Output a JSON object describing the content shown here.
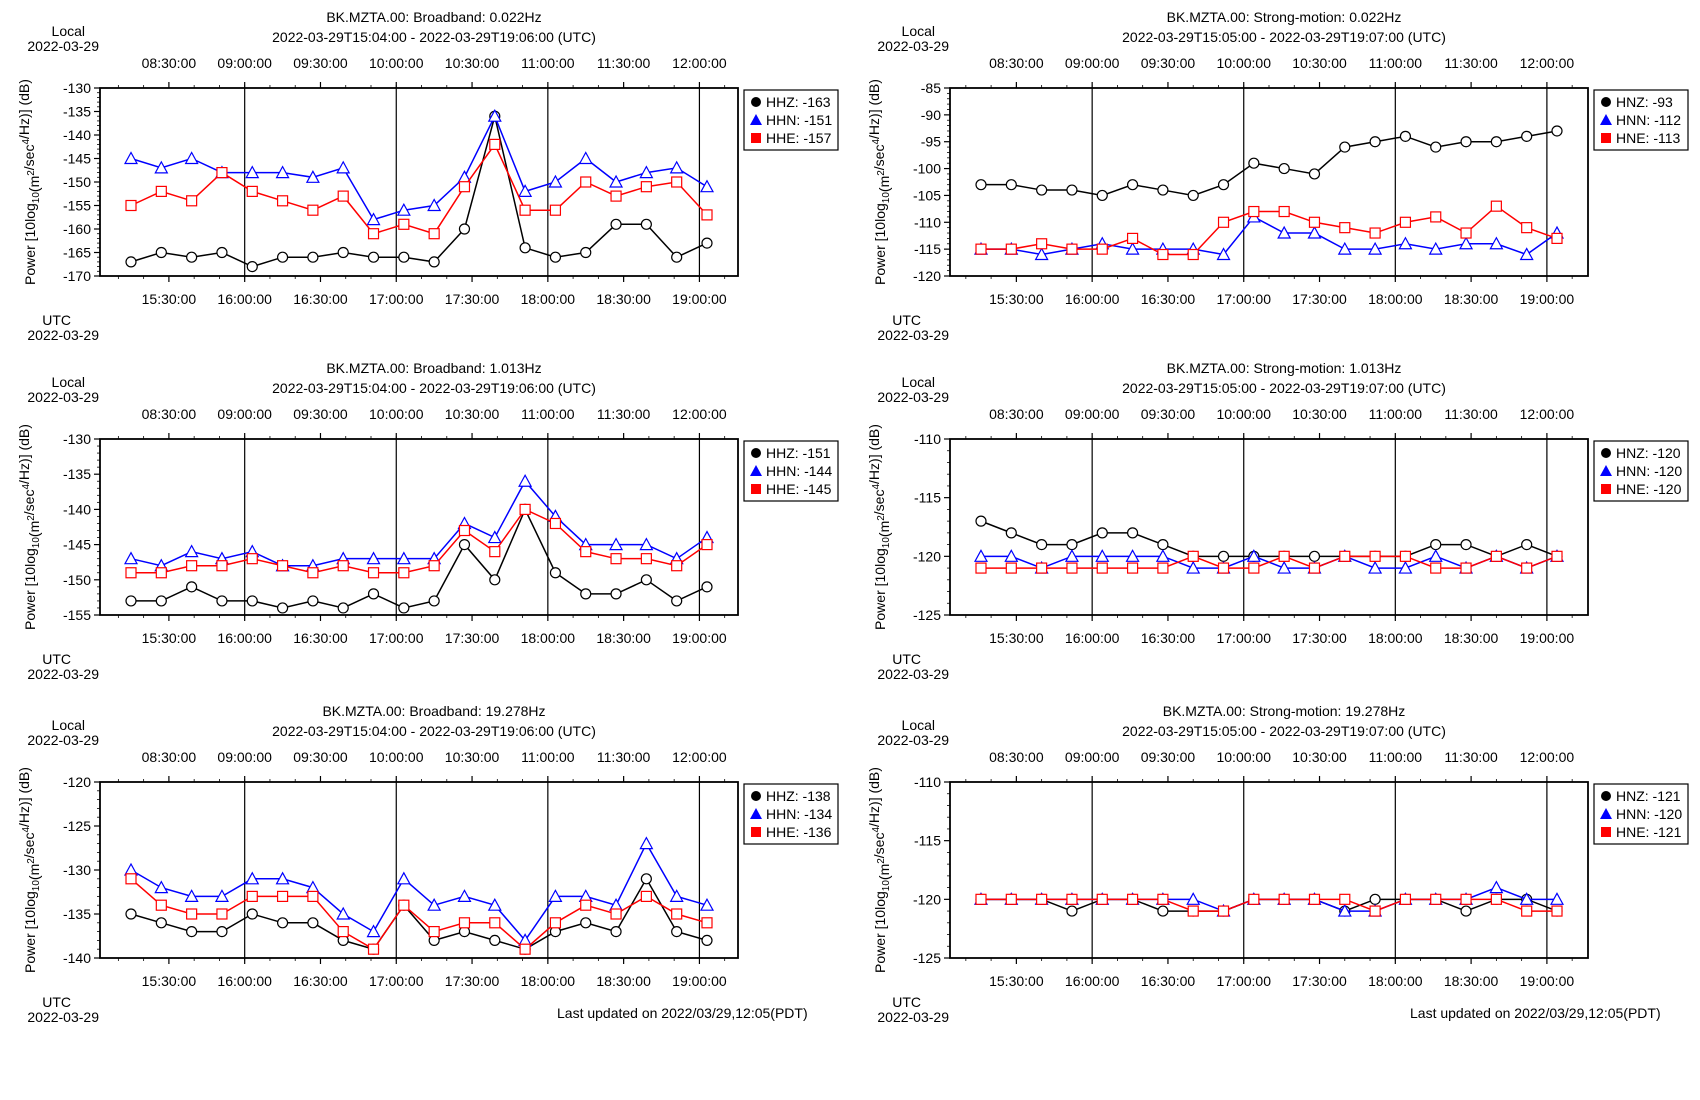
{
  "chart_data": [
    {
      "type": "line",
      "title": "BK.MZTA.00: Broadband: 0.022Hz",
      "subtitle": "2022-03-29T15:04:00 - 2022-03-29T19:06:00 (UTC)",
      "ylabel": "Power [10log10(m2/sec4/Hz)] (dB)",
      "ylim": [
        -170,
        -130
      ],
      "yticks": [
        -130,
        -135,
        -140,
        -145,
        -150,
        -155,
        -160,
        -165,
        -170
      ],
      "local_label": "Local",
      "local_date": "2022-03-29",
      "utc_label": "UTC",
      "utc_date": "2022-03-29",
      "top_ticks": [
        "08:30:00",
        "09:00:00",
        "09:30:00",
        "10:00:00",
        "10:30:00",
        "11:00:00",
        "11:30:00",
        "12:00:00"
      ],
      "bottom_ticks": [
        "15:30:00",
        "16:00:00",
        "16:30:00",
        "17:00:00",
        "17:30:00",
        "18:00:00",
        "18:30:00",
        "19:00:00"
      ],
      "x": [
        "15:15",
        "15:27",
        "15:39",
        "15:51",
        "16:03",
        "16:15",
        "16:27",
        "16:39",
        "16:51",
        "17:03",
        "17:15",
        "17:27",
        "17:39",
        "17:51",
        "18:03",
        "18:15",
        "18:27",
        "18:39",
        "18:51",
        "19:03"
      ],
      "series": [
        {
          "name": "HHZ: -163",
          "color": "#000000",
          "marker": "circle",
          "values": [
            -167,
            -165,
            -166,
            -165,
            -168,
            -166,
            -166,
            -165,
            -166,
            -166,
            -167,
            -160,
            -136,
            -164,
            -166,
            -165,
            -159,
            -159,
            -166,
            -163
          ]
        },
        {
          "name": "HHN: -151",
          "color": "#0000ff",
          "marker": "triangle",
          "values": [
            -145,
            -147,
            -145,
            -148,
            -148,
            -148,
            -149,
            -147,
            -158,
            -156,
            -155,
            -149,
            -136,
            -152,
            -150,
            -145,
            -150,
            -148,
            -147,
            -151
          ]
        },
        {
          "name": "HHE: -157",
          "color": "#ff0000",
          "marker": "square",
          "values": [
            -155,
            -152,
            -154,
            -148,
            -152,
            -154,
            -156,
            -153,
            -161,
            -159,
            -161,
            -151,
            -142,
            -156,
            -156,
            -150,
            -153,
            -151,
            -150,
            -157
          ]
        }
      ],
      "legend": "top-right"
    },
    {
      "type": "line",
      "title": "BK.MZTA.00: Strong-motion: 0.022Hz",
      "subtitle": "2022-03-29T15:05:00 - 2022-03-29T19:07:00 (UTC)",
      "ylabel": "Power [10log10(m2/sec4/Hz)] (dB)",
      "ylim": [
        -120,
        -85
      ],
      "yticks": [
        -85,
        -90,
        -95,
        -100,
        -105,
        -110,
        -115,
        -120
      ],
      "local_label": "Local",
      "local_date": "2022-03-29",
      "utc_label": "UTC",
      "utc_date": "2022-03-29",
      "top_ticks": [
        "08:30:00",
        "09:00:00",
        "09:30:00",
        "10:00:00",
        "10:30:00",
        "11:00:00",
        "11:30:00",
        "12:00:00"
      ],
      "bottom_ticks": [
        "15:30:00",
        "16:00:00",
        "16:30:00",
        "17:00:00",
        "17:30:00",
        "18:00:00",
        "18:30:00",
        "19:00:00"
      ],
      "x": [
        "15:16",
        "15:28",
        "15:40",
        "15:52",
        "16:04",
        "16:16",
        "16:28",
        "16:40",
        "16:52",
        "17:04",
        "17:16",
        "17:28",
        "17:40",
        "17:52",
        "18:04",
        "18:16",
        "18:28",
        "18:40",
        "18:52",
        "19:04"
      ],
      "series": [
        {
          "name": "HNZ: -93",
          "color": "#000000",
          "marker": "circle",
          "values": [
            -103,
            -103,
            -104,
            -104,
            -105,
            -103,
            -104,
            -105,
            -103,
            -99,
            -100,
            -101,
            -96,
            -95,
            -94,
            -96,
            -95,
            -95,
            -94,
            -93
          ]
        },
        {
          "name": "HNN: -112",
          "color": "#0000ff",
          "marker": "triangle",
          "values": [
            -115,
            -115,
            -116,
            -115,
            -114,
            -115,
            -115,
            -115,
            -116,
            -109,
            -112,
            -112,
            -115,
            -115,
            -114,
            -115,
            -114,
            -114,
            -116,
            -112
          ]
        },
        {
          "name": "HNE: -113",
          "color": "#ff0000",
          "marker": "square",
          "values": [
            -115,
            -115,
            -114,
            -115,
            -115,
            -113,
            -116,
            -116,
            -110,
            -108,
            -108,
            -110,
            -111,
            -112,
            -110,
            -109,
            -112,
            -107,
            -111,
            -113
          ]
        }
      ],
      "legend": "top-right"
    },
    {
      "type": "line",
      "title": "BK.MZTA.00: Broadband: 1.013Hz",
      "subtitle": "2022-03-29T15:04:00 - 2022-03-29T19:06:00 (UTC)",
      "ylabel": "Power [10log10(m2/sec4/Hz)] (dB)",
      "ylim": [
        -155,
        -130
      ],
      "yticks": [
        -130,
        -135,
        -140,
        -145,
        -150,
        -155
      ],
      "local_label": "Local",
      "local_date": "2022-03-29",
      "utc_label": "UTC",
      "utc_date": "2022-03-29",
      "top_ticks": [
        "08:30:00",
        "09:00:00",
        "09:30:00",
        "10:00:00",
        "10:30:00",
        "11:00:00",
        "11:30:00",
        "12:00:00"
      ],
      "bottom_ticks": [
        "15:30:00",
        "16:00:00",
        "16:30:00",
        "17:00:00",
        "17:30:00",
        "18:00:00",
        "18:30:00",
        "19:00:00"
      ],
      "x": [
        "15:15",
        "15:27",
        "15:39",
        "15:51",
        "16:03",
        "16:15",
        "16:27",
        "16:39",
        "16:51",
        "17:03",
        "17:15",
        "17:27",
        "17:39",
        "17:51",
        "18:03",
        "18:15",
        "18:27",
        "18:39",
        "18:51",
        "19:03"
      ],
      "series": [
        {
          "name": "HHZ: -151",
          "color": "#000000",
          "marker": "circle",
          "values": [
            -153,
            -153,
            -151,
            -153,
            -153,
            -154,
            -153,
            -154,
            -152,
            -154,
            -153,
            -145,
            -150,
            -140,
            -149,
            -152,
            -152,
            -150,
            -153,
            -151
          ]
        },
        {
          "name": "HHN: -144",
          "color": "#0000ff",
          "marker": "triangle",
          "values": [
            -147,
            -148,
            -146,
            -147,
            -146,
            -148,
            -148,
            -147,
            -147,
            -147,
            -147,
            -142,
            -144,
            -136,
            -141,
            -145,
            -145,
            -145,
            -147,
            -144
          ]
        },
        {
          "name": "HHE: -145",
          "color": "#ff0000",
          "marker": "square",
          "values": [
            -149,
            -149,
            -148,
            -148,
            -147,
            -148,
            -149,
            -148,
            -149,
            -149,
            -148,
            -143,
            -146,
            -140,
            -142,
            -146,
            -147,
            -147,
            -148,
            -145
          ]
        }
      ],
      "legend": "top-right"
    },
    {
      "type": "line",
      "title": "BK.MZTA.00: Strong-motion: 1.013Hz",
      "subtitle": "2022-03-29T15:05:00 - 2022-03-29T19:07:00 (UTC)",
      "ylabel": "Power [10log10(m2/sec4/Hz)] (dB)",
      "ylim": [
        -125,
        -110
      ],
      "yticks": [
        -110,
        -115,
        -120,
        -125
      ],
      "local_label": "Local",
      "local_date": "2022-03-29",
      "utc_label": "UTC",
      "utc_date": "2022-03-29",
      "top_ticks": [
        "08:30:00",
        "09:00:00",
        "09:30:00",
        "10:00:00",
        "10:30:00",
        "11:00:00",
        "11:30:00",
        "12:00:00"
      ],
      "bottom_ticks": [
        "15:30:00",
        "16:00:00",
        "16:30:00",
        "17:00:00",
        "17:30:00",
        "18:00:00",
        "18:30:00",
        "19:00:00"
      ],
      "x": [
        "15:16",
        "15:28",
        "15:40",
        "15:52",
        "16:04",
        "16:16",
        "16:28",
        "16:40",
        "16:52",
        "17:04",
        "17:16",
        "17:28",
        "17:40",
        "17:52",
        "18:04",
        "18:16",
        "18:28",
        "18:40",
        "18:52",
        "19:04"
      ],
      "series": [
        {
          "name": "HNZ: -120",
          "color": "#000000",
          "marker": "circle",
          "values": [
            -117,
            -118,
            -119,
            -119,
            -118,
            -118,
            -119,
            -120,
            -120,
            -120,
            -120,
            -120,
            -120,
            -120,
            -120,
            -119,
            -119,
            -120,
            -119,
            -120
          ]
        },
        {
          "name": "HNN: -120",
          "color": "#0000ff",
          "marker": "triangle",
          "values": [
            -120,
            -120,
            -121,
            -120,
            -120,
            -120,
            -120,
            -121,
            -121,
            -120,
            -121,
            -121,
            -120,
            -121,
            -121,
            -120,
            -121,
            -120,
            -121,
            -120
          ]
        },
        {
          "name": "HNE: -120",
          "color": "#ff0000",
          "marker": "square",
          "values": [
            -121,
            -121,
            -121,
            -121,
            -121,
            -121,
            -121,
            -120,
            -121,
            -121,
            -120,
            -121,
            -120,
            -120,
            -120,
            -121,
            -121,
            -120,
            -121,
            -120
          ]
        }
      ],
      "legend": "top-right"
    },
    {
      "type": "line",
      "title": "BK.MZTA.00: Broadband: 19.278Hz",
      "subtitle": "2022-03-29T15:04:00 - 2022-03-29T19:06:00 (UTC)",
      "ylabel": "Power [10log10(m2/sec4/Hz)] (dB)",
      "ylim": [
        -140,
        -120
      ],
      "yticks": [
        -120,
        -125,
        -130,
        -135,
        -140
      ],
      "local_label": "Local",
      "local_date": "2022-03-29",
      "utc_label": "UTC",
      "utc_date": "2022-03-29",
      "top_ticks": [
        "08:30:00",
        "09:00:00",
        "09:30:00",
        "10:00:00",
        "10:30:00",
        "11:00:00",
        "11:30:00",
        "12:00:00"
      ],
      "bottom_ticks": [
        "15:30:00",
        "16:00:00",
        "16:30:00",
        "17:00:00",
        "17:30:00",
        "18:00:00",
        "18:30:00",
        "19:00:00"
      ],
      "x": [
        "15:15",
        "15:27",
        "15:39",
        "15:51",
        "16:03",
        "16:15",
        "16:27",
        "16:39",
        "16:51",
        "17:03",
        "17:15",
        "17:27",
        "17:39",
        "17:51",
        "18:03",
        "18:15",
        "18:27",
        "18:39",
        "18:51",
        "19:03"
      ],
      "series": [
        {
          "name": "HHZ: -138",
          "color": "#000000",
          "marker": "circle",
          "values": [
            -135,
            -136,
            -137,
            -137,
            -135,
            -136,
            -136,
            -138,
            -139,
            -134,
            -138,
            -137,
            -138,
            -139,
            -137,
            -136,
            -137,
            -131,
            -137,
            -138
          ]
        },
        {
          "name": "HHN: -134",
          "color": "#0000ff",
          "marker": "triangle",
          "values": [
            -130,
            -132,
            -133,
            -133,
            -131,
            -131,
            -132,
            -135,
            -137,
            -131,
            -134,
            -133,
            -134,
            -138,
            -133,
            -133,
            -134,
            -127,
            -133,
            -134
          ]
        },
        {
          "name": "HHE: -136",
          "color": "#ff0000",
          "marker": "square",
          "values": [
            -131,
            -134,
            -135,
            -135,
            -133,
            -133,
            -133,
            -137,
            -139,
            -134,
            -137,
            -136,
            -136,
            -139,
            -136,
            -134,
            -135,
            -133,
            -135,
            -136
          ]
        }
      ],
      "legend": "top-right"
    },
    {
      "type": "line",
      "title": "BK.MZTA.00: Strong-motion: 19.278Hz",
      "subtitle": "2022-03-29T15:05:00 - 2022-03-29T19:07:00 (UTC)",
      "ylabel": "Power [10log10(m2/sec4/Hz)] (dB)",
      "ylim": [
        -125,
        -110
      ],
      "yticks": [
        -110,
        -115,
        -120,
        -125
      ],
      "local_label": "Local",
      "local_date": "2022-03-29",
      "utc_label": "UTC",
      "utc_date": "2022-03-29",
      "top_ticks": [
        "08:30:00",
        "09:00:00",
        "09:30:00",
        "10:00:00",
        "10:30:00",
        "11:00:00",
        "11:30:00",
        "12:00:00"
      ],
      "bottom_ticks": [
        "15:30:00",
        "16:00:00",
        "16:30:00",
        "17:00:00",
        "17:30:00",
        "18:00:00",
        "18:30:00",
        "19:00:00"
      ],
      "x": [
        "15:16",
        "15:28",
        "15:40",
        "15:52",
        "16:04",
        "16:16",
        "16:28",
        "16:40",
        "16:52",
        "17:04",
        "17:16",
        "17:28",
        "17:40",
        "17:52",
        "18:04",
        "18:16",
        "18:28",
        "18:40",
        "18:52",
        "19:04"
      ],
      "series": [
        {
          "name": "HNZ: -121",
          "color": "#000000",
          "marker": "circle",
          "values": [
            -120,
            -120,
            -120,
            -121,
            -120,
            -120,
            -121,
            -121,
            -121,
            -120,
            -120,
            -120,
            -121,
            -120,
            -120,
            -120,
            -121,
            -120,
            -120,
            -121
          ]
        },
        {
          "name": "HNN: -120",
          "color": "#0000ff",
          "marker": "triangle",
          "values": [
            -120,
            -120,
            -120,
            -120,
            -120,
            -120,
            -120,
            -120,
            -121,
            -120,
            -120,
            -120,
            -121,
            -121,
            -120,
            -120,
            -120,
            -119,
            -120,
            -120
          ]
        },
        {
          "name": "HNE: -121",
          "color": "#ff0000",
          "marker": "square",
          "values": [
            -120,
            -120,
            -120,
            -120,
            -120,
            -120,
            -120,
            -121,
            -121,
            -120,
            -120,
            -120,
            -120,
            -121,
            -120,
            -120,
            -120,
            -120,
            -121,
            -121
          ]
        }
      ],
      "legend": "top-right"
    }
  ],
  "footer": {
    "updated_left": "Last updated on 2022/03/29,12:05(PDT)",
    "updated_right": "Last updated on 2022/03/29,12:05(PDT)"
  }
}
